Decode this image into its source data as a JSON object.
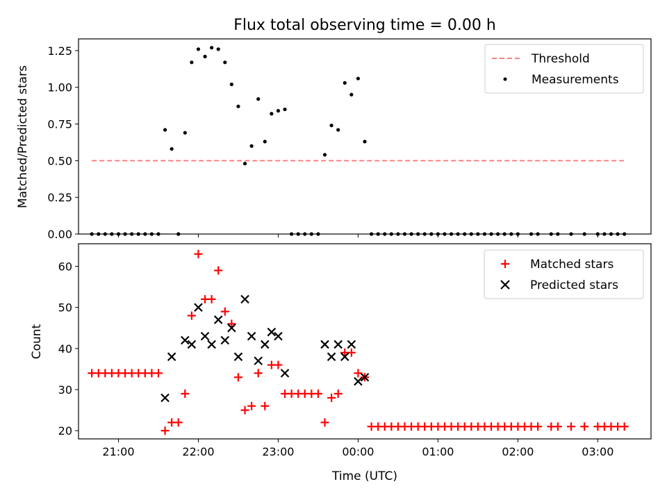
{
  "figure": {
    "title": "Flux total observing time = 0.00 h"
  },
  "chart_data": [
    {
      "type": "scatter",
      "title": "Flux total observing time = 0.00 h",
      "ylabel": "Matched/Predicted stars",
      "xlabel": "",
      "xlim": [
        "20:30",
        "03:40"
      ],
      "ylim": [
        0,
        1.33
      ],
      "yticks": [
        0.0,
        0.25,
        0.5,
        0.75,
        1.0,
        1.25
      ],
      "ytick_labels": [
        "0.00",
        "0.25",
        "0.50",
        "0.75",
        "1.00",
        "1.25"
      ],
      "legend_position": "top-right",
      "series": [
        {
          "name": "Threshold",
          "kind": "line",
          "style": "dashed",
          "color": "#ff7f7f",
          "x": [
            "20:40",
            "03:20"
          ],
          "y": [
            0.5,
            0.5
          ]
        },
        {
          "name": "Measurements",
          "kind": "scatter",
          "marker": "dot",
          "color": "#000000",
          "points": [
            [
              "20:40",
              0
            ],
            [
              "20:45",
              0
            ],
            [
              "20:50",
              0
            ],
            [
              "20:55",
              0
            ],
            [
              "21:00",
              0
            ],
            [
              "21:05",
              0
            ],
            [
              "21:10",
              0
            ],
            [
              "21:15",
              0
            ],
            [
              "21:20",
              0
            ],
            [
              "21:25",
              0
            ],
            [
              "21:30",
              0
            ],
            [
              "21:35",
              0.71
            ],
            [
              "21:40",
              0.58
            ],
            [
              "21:45",
              0
            ],
            [
              "21:50",
              0.69
            ],
            [
              "21:55",
              1.17
            ],
            [
              "22:00",
              1.26
            ],
            [
              "22:05",
              1.21
            ],
            [
              "22:10",
              1.27
            ],
            [
              "22:15",
              1.26
            ],
            [
              "22:20",
              1.17
            ],
            [
              "22:25",
              1.02
            ],
            [
              "22:30",
              0.87
            ],
            [
              "22:35",
              0.48
            ],
            [
              "22:40",
              0.6
            ],
            [
              "22:45",
              0.92
            ],
            [
              "22:50",
              0.63
            ],
            [
              "22:55",
              0.82
            ],
            [
              "23:00",
              0.84
            ],
            [
              "23:05",
              0.85
            ],
            [
              "23:10",
              0
            ],
            [
              "23:15",
              0
            ],
            [
              "23:20",
              0
            ],
            [
              "23:25",
              0
            ],
            [
              "23:30",
              0
            ],
            [
              "23:35",
              0.54
            ],
            [
              "23:40",
              0.74
            ],
            [
              "23:45",
              0.71
            ],
            [
              "23:50",
              1.03
            ],
            [
              "23:55",
              0.95
            ],
            [
              "00:00",
              1.06
            ],
            [
              "00:05",
              0.63
            ],
            [
              "00:10",
              0
            ],
            [
              "00:15",
              0
            ],
            [
              "00:20",
              0
            ],
            [
              "00:25",
              0
            ],
            [
              "00:30",
              0
            ],
            [
              "00:35",
              0
            ],
            [
              "00:40",
              0
            ],
            [
              "00:45",
              0
            ],
            [
              "00:50",
              0
            ],
            [
              "00:55",
              0
            ],
            [
              "01:00",
              0
            ],
            [
              "01:05",
              0
            ],
            [
              "01:10",
              0
            ],
            [
              "01:15",
              0
            ],
            [
              "01:20",
              0
            ],
            [
              "01:25",
              0
            ],
            [
              "01:30",
              0
            ],
            [
              "01:35",
              0
            ],
            [
              "01:40",
              0
            ],
            [
              "01:45",
              0
            ],
            [
              "01:50",
              0
            ],
            [
              "01:55",
              0
            ],
            [
              "02:00",
              0
            ],
            [
              "02:10",
              0
            ],
            [
              "02:15",
              0
            ],
            [
              "02:25",
              0
            ],
            [
              "02:30",
              0
            ],
            [
              "02:40",
              0
            ],
            [
              "02:50",
              0
            ],
            [
              "03:00",
              0
            ],
            [
              "03:05",
              0
            ],
            [
              "03:10",
              0
            ],
            [
              "03:15",
              0
            ],
            [
              "03:20",
              0
            ]
          ]
        }
      ]
    },
    {
      "type": "scatter",
      "title": "",
      "ylabel": "Count",
      "xlabel": "Time (UTC)",
      "xlim": [
        "20:30",
        "03:40"
      ],
      "ylim": [
        18,
        65.5
      ],
      "xticks": [
        "21:00",
        "22:00",
        "23:00",
        "00:00",
        "01:00",
        "02:00",
        "03:00"
      ],
      "yticks": [
        20,
        30,
        40,
        50,
        60
      ],
      "ytick_labels": [
        "20",
        "30",
        "40",
        "50",
        "60"
      ],
      "legend_position": "top-right",
      "series": [
        {
          "name": "Matched stars",
          "kind": "scatter",
          "marker": "plus",
          "color": "#ff0000",
          "points": [
            [
              "20:40",
              34
            ],
            [
              "20:45",
              34
            ],
            [
              "20:50",
              34
            ],
            [
              "20:55",
              34
            ],
            [
              "21:00",
              34
            ],
            [
              "21:05",
              34
            ],
            [
              "21:10",
              34
            ],
            [
              "21:15",
              34
            ],
            [
              "21:20",
              34
            ],
            [
              "21:25",
              34
            ],
            [
              "21:30",
              34
            ],
            [
              "21:35",
              20
            ],
            [
              "21:40",
              22
            ],
            [
              "21:45",
              22
            ],
            [
              "21:50",
              29
            ],
            [
              "21:55",
              48
            ],
            [
              "22:00",
              63
            ],
            [
              "22:05",
              52
            ],
            [
              "22:10",
              52
            ],
            [
              "22:15",
              59
            ],
            [
              "22:20",
              49
            ],
            [
              "22:25",
              46
            ],
            [
              "22:30",
              33
            ],
            [
              "22:35",
              25
            ],
            [
              "22:40",
              26
            ],
            [
              "22:45",
              34
            ],
            [
              "22:50",
              26
            ],
            [
              "22:55",
              36
            ],
            [
              "23:00",
              36
            ],
            [
              "23:05",
              29
            ],
            [
              "23:10",
              29
            ],
            [
              "23:15",
              29
            ],
            [
              "23:20",
              29
            ],
            [
              "23:25",
              29
            ],
            [
              "23:30",
              29
            ],
            [
              "23:35",
              22
            ],
            [
              "23:40",
              28
            ],
            [
              "23:45",
              29
            ],
            [
              "23:50",
              39
            ],
            [
              "23:55",
              39
            ],
            [
              "00:00",
              34
            ],
            [
              "00:05",
              33
            ],
            [
              "00:10",
              21
            ],
            [
              "00:15",
              21
            ],
            [
              "00:20",
              21
            ],
            [
              "00:25",
              21
            ],
            [
              "00:30",
              21
            ],
            [
              "00:35",
              21
            ],
            [
              "00:40",
              21
            ],
            [
              "00:45",
              21
            ],
            [
              "00:50",
              21
            ],
            [
              "00:55",
              21
            ],
            [
              "01:00",
              21
            ],
            [
              "01:05",
              21
            ],
            [
              "01:10",
              21
            ],
            [
              "01:15",
              21
            ],
            [
              "01:20",
              21
            ],
            [
              "01:25",
              21
            ],
            [
              "01:30",
              21
            ],
            [
              "01:35",
              21
            ],
            [
              "01:40",
              21
            ],
            [
              "01:45",
              21
            ],
            [
              "01:50",
              21
            ],
            [
              "01:55",
              21
            ],
            [
              "02:00",
              21
            ],
            [
              "02:05",
              21
            ],
            [
              "02:10",
              21
            ],
            [
              "02:15",
              21
            ],
            [
              "02:25",
              21
            ],
            [
              "02:30",
              21
            ],
            [
              "02:40",
              21
            ],
            [
              "02:50",
              21
            ],
            [
              "03:00",
              21
            ],
            [
              "03:05",
              21
            ],
            [
              "03:10",
              21
            ],
            [
              "03:15",
              21
            ],
            [
              "03:20",
              21
            ]
          ]
        },
        {
          "name": "Predicted stars",
          "kind": "scatter",
          "marker": "x",
          "color": "#000000",
          "points": [
            [
              "21:35",
              28
            ],
            [
              "21:40",
              38
            ],
            [
              "21:50",
              42
            ],
            [
              "21:55",
              41
            ],
            [
              "22:00",
              50
            ],
            [
              "22:05",
              43
            ],
            [
              "22:10",
              41
            ],
            [
              "22:15",
              47
            ],
            [
              "22:20",
              42
            ],
            [
              "22:25",
              45
            ],
            [
              "22:30",
              38
            ],
            [
              "22:35",
              52
            ],
            [
              "22:40",
              43
            ],
            [
              "22:45",
              37
            ],
            [
              "22:50",
              41
            ],
            [
              "22:55",
              44
            ],
            [
              "23:00",
              43
            ],
            [
              "23:05",
              34
            ],
            [
              "23:35",
              41
            ],
            [
              "23:40",
              38
            ],
            [
              "23:45",
              41
            ],
            [
              "23:50",
              38
            ],
            [
              "23:55",
              41
            ],
            [
              "00:00",
              32
            ],
            [
              "00:05",
              33
            ]
          ]
        }
      ]
    }
  ]
}
